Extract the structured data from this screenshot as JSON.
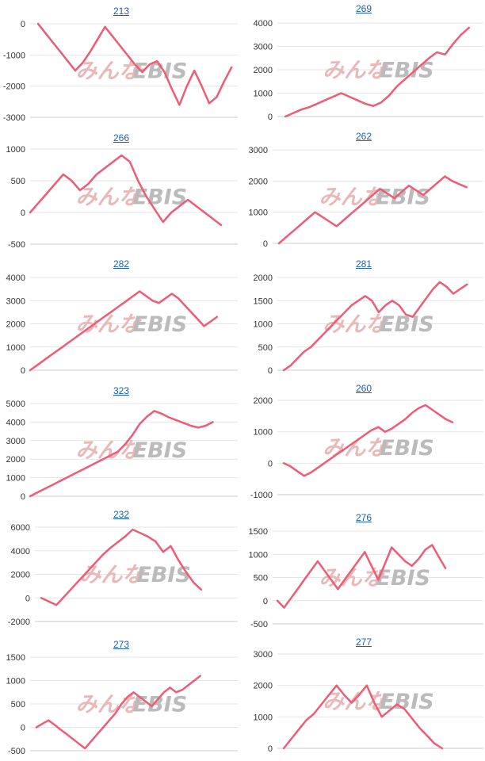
{
  "colors": {
    "line": "#ee5c76",
    "title_link": "#1a5fb4",
    "grid": "#e6e6e6",
    "watermark_red": "#e9b8b8",
    "watermark_gray": "#bbbbbb"
  },
  "watermark": {
    "left": "みんな",
    "right": "EBIS"
  },
  "chart_data": [
    {
      "type": "line",
      "title": "213",
      "ylim": [
        -3000,
        0
      ],
      "yticks": [
        0,
        -1000,
        -2000,
        -3000
      ],
      "y": [
        0,
        -300,
        -600,
        -900,
        -1200,
        -1500,
        -1250,
        -900,
        -500,
        -100,
        -400,
        -700,
        -1000,
        -1300,
        -1550,
        -1300,
        -1200,
        -1550,
        -2100,
        -2600,
        -2000,
        -1500,
        -2000,
        -2550,
        -2350,
        -1850,
        -1400
      ]
    },
    {
      "type": "line",
      "title": "269",
      "ylim": [
        0,
        4000
      ],
      "yticks": [
        4000,
        3000,
        2000,
        1000,
        0
      ],
      "y": [
        0,
        150,
        300,
        400,
        550,
        700,
        850,
        1000,
        850,
        700,
        550,
        450,
        600,
        900,
        1300,
        1600,
        1900,
        2200,
        2500,
        2750,
        2650,
        3100,
        3500,
        3800
      ]
    },
    {
      "type": "line",
      "title": "266",
      "ylim": [
        -500,
        1000
      ],
      "yticks": [
        1000,
        500,
        0,
        -500
      ],
      "y": [
        0,
        150,
        300,
        450,
        600,
        500,
        350,
        450,
        600,
        700,
        800,
        900,
        800,
        500,
        250,
        50,
        -150,
        0,
        100,
        200,
        100,
        0,
        -100,
        -200
      ]
    },
    {
      "type": "line",
      "title": "262",
      "ylim": [
        0,
        3000
      ],
      "yticks": [
        3000,
        2000,
        1000,
        0
      ],
      "y": [
        0,
        200,
        400,
        600,
        800,
        1000,
        850,
        700,
        550,
        750,
        950,
        1150,
        1350,
        1550,
        1750,
        1600,
        1450,
        1650,
        1850,
        1700,
        1550,
        1750,
        1950,
        2150,
        2000,
        1900,
        1800
      ]
    },
    {
      "type": "line",
      "title": "282",
      "ylim": [
        0,
        4000
      ],
      "yticks": [
        4000,
        3000,
        2000,
        1000,
        0
      ],
      "y": [
        0,
        200,
        400,
        600,
        800,
        1000,
        1200,
        1400,
        1600,
        1800,
        2000,
        2200,
        2400,
        2600,
        2800,
        3000,
        3200,
        3400,
        3200,
        3000,
        2900,
        3100,
        3300,
        3100,
        2800,
        2500,
        2200,
        1900,
        2100,
        2300
      ]
    },
    {
      "type": "line",
      "title": "281",
      "ylim": [
        0,
        2000
      ],
      "yticks": [
        2000,
        1500,
        1000,
        500,
        0
      ],
      "y": [
        0,
        100,
        250,
        400,
        500,
        650,
        800,
        950,
        1100,
        1250,
        1400,
        1500,
        1600,
        1500,
        1250,
        1400,
        1500,
        1400,
        1200,
        1150,
        1350,
        1550,
        1750,
        1900,
        1800,
        1650,
        1750,
        1850
      ]
    },
    {
      "type": "line",
      "title": "323",
      "ylim": [
        0,
        5000
      ],
      "yticks": [
        5000,
        4000,
        3000,
        2000,
        1000,
        0
      ],
      "y": [
        0,
        200,
        400,
        600,
        800,
        1000,
        1200,
        1400,
        1600,
        1800,
        2000,
        2200,
        2400,
        2800,
        3300,
        3900,
        4300,
        4600,
        4450,
        4250,
        4100,
        3950,
        3800,
        3700,
        3800,
        4000
      ]
    },
    {
      "type": "line",
      "title": "260",
      "ylim": [
        -1000,
        2000
      ],
      "yticks": [
        2000,
        1000,
        0,
        -1000
      ],
      "y": [
        0,
        -100,
        -250,
        -400,
        -300,
        -150,
        0,
        150,
        300,
        450,
        600,
        750,
        900,
        1050,
        1150,
        1000,
        1100,
        1250,
        1400,
        1600,
        1750,
        1850,
        1700,
        1550,
        1400,
        1300
      ]
    },
    {
      "type": "line",
      "title": "232",
      "ylim": [
        -2000,
        6000
      ],
      "yticks": [
        6000,
        4000,
        2000,
        0,
        -2000
      ],
      "y": [
        0,
        -300,
        -600,
        100,
        800,
        1500,
        2200,
        2900,
        3600,
        4200,
        4700,
        5200,
        5800,
        5500,
        5200,
        4800,
        3900,
        4400,
        3200,
        2200,
        1300,
        700
      ]
    },
    {
      "type": "line",
      "title": "276",
      "ylim": [
        -500,
        1500
      ],
      "yticks": [
        1500,
        1000,
        500,
        0,
        -500
      ],
      "y": [
        0,
        -150,
        50,
        250,
        450,
        650,
        850,
        650,
        450,
        250,
        450,
        650,
        850,
        1050,
        750,
        450,
        800,
        1150,
        1000,
        850,
        750,
        900,
        1100,
        1200,
        950,
        700
      ]
    },
    {
      "type": "line",
      "title": "273",
      "ylim": [
        -500,
        1500
      ],
      "yticks": [
        1500,
        1000,
        500,
        0,
        -500
      ],
      "y": [
        0,
        80,
        150,
        50,
        -50,
        -150,
        -250,
        -350,
        -450,
        -300,
        -150,
        0,
        150,
        300,
        500,
        650,
        750,
        650,
        550,
        450,
        600,
        750,
        850,
        750,
        800,
        900,
        1000,
        1100
      ]
    },
    {
      "type": "line",
      "title": "277",
      "ylim": [
        0,
        3000
      ],
      "yticks": [
        3000,
        2000,
        1000,
        0
      ],
      "y": [
        0,
        300,
        600,
        900,
        1100,
        1400,
        1700,
        2000,
        1700,
        1450,
        1700,
        2000,
        1450,
        1000,
        1200,
        1400,
        1250,
        950,
        650,
        400,
        150,
        0
      ]
    }
  ]
}
